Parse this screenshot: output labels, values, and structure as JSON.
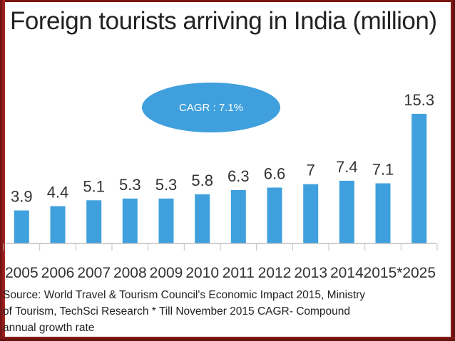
{
  "chart_data": {
    "type": "bar",
    "title": "Foreign tourists arriving in India (million)",
    "categories": [
      "2005",
      "2006",
      "2007",
      "2008",
      "2009",
      "2010",
      "2011",
      "2012",
      "2013",
      "2014",
      "2015*",
      "2025"
    ],
    "values": [
      3.9,
      4.4,
      5.1,
      5.3,
      5.3,
      5.8,
      6.3,
      6.6,
      7,
      7.4,
      7.1,
      15.3
    ],
    "value_labels": [
      "3.9",
      "4.4",
      "5.1",
      "5.3",
      "5.3",
      "5.8",
      "6.3",
      "6.6",
      "7",
      "7.4",
      "7.1",
      "15.3"
    ],
    "annotation": "CAGR : 7.1%",
    "xlabel": "",
    "ylabel": "",
    "ylim": [
      0,
      16
    ],
    "grid": false,
    "bar_color": "#3fa0dd",
    "source_lines": [
      "Source: World Travel & Tourism Council's Economic Impact 2015, Ministry",
      "of Tourism, TechSci Research * Till November 2015 CAGR- Compound",
      "annual growth rate"
    ]
  }
}
